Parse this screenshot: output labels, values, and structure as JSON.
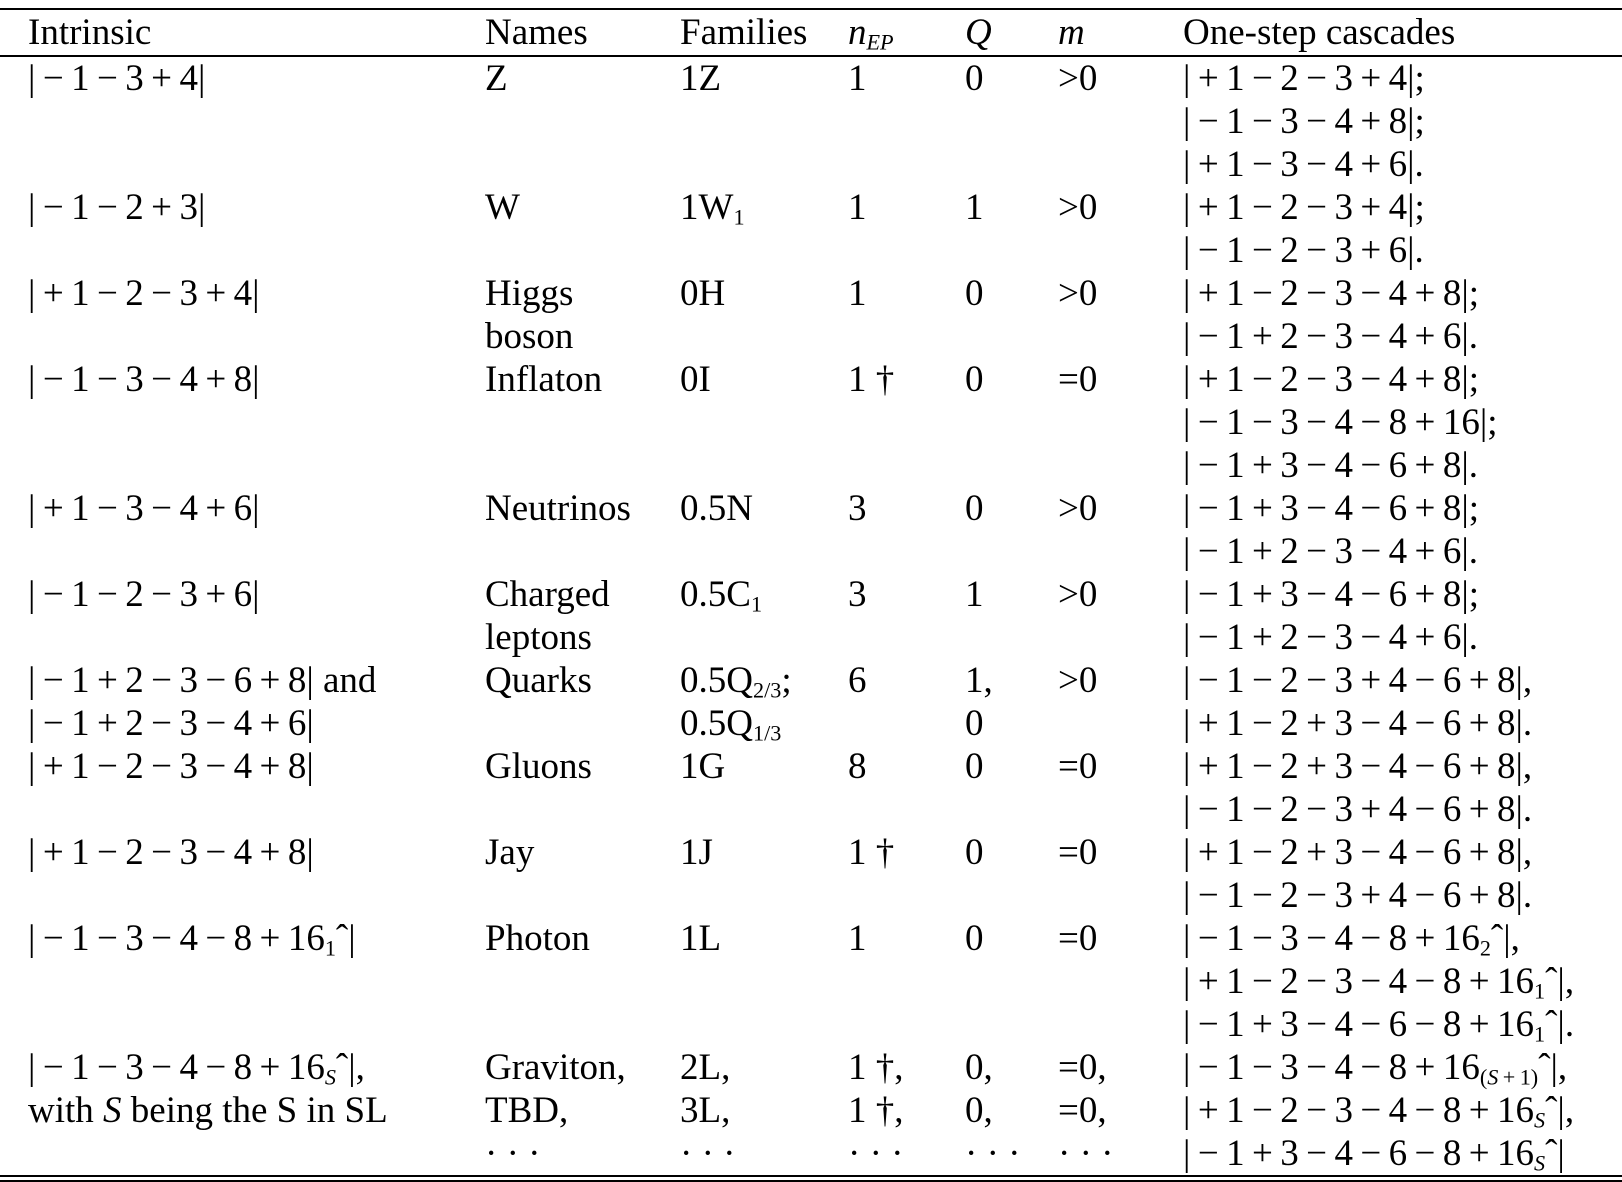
{
  "table": {
    "headers": [
      "Intrinsic",
      "Names",
      "Families",
      "*n*_{*EP*}",
      "*Q*",
      "*m*",
      "One-step cascades"
    ],
    "rows": [
      {
        "intrinsic": [
          "|−1−3+4|"
        ],
        "names": [
          "Z"
        ],
        "families": [
          "1Z"
        ],
        "n_ep": [
          "1"
        ],
        "q": [
          "0"
        ],
        "m": [
          ">0"
        ],
        "cascades": [
          "|+1−2−3+4|;",
          "|−1−3−4+8|;",
          "|+1−3−4+6|."
        ]
      },
      {
        "intrinsic": [
          "|−1−2+3|"
        ],
        "names": [
          "W"
        ],
        "families": [
          "1W_{1}"
        ],
        "n_ep": [
          "1"
        ],
        "q": [
          "1"
        ],
        "m": [
          ">0"
        ],
        "cascades": [
          "|+1−2−3+4|;",
          "|−1−2−3+6|."
        ]
      },
      {
        "intrinsic": [
          "|+1−2−3+4|"
        ],
        "names": [
          "Higgs",
          "boson"
        ],
        "families": [
          "0H"
        ],
        "n_ep": [
          "1"
        ],
        "q": [
          "0"
        ],
        "m": [
          ">0"
        ],
        "cascades": [
          "|+1−2−3−4+8|;",
          "|−1+2−3−4+6|."
        ]
      },
      {
        "intrinsic": [
          "|−1−3−4+8|"
        ],
        "names": [
          "Inflaton"
        ],
        "families": [
          "0I"
        ],
        "n_ep": [
          "1 †"
        ],
        "q": [
          "0"
        ],
        "m": [
          "=0"
        ],
        "cascades": [
          "|+1−2−3−4+8|;",
          "|−1−3−4−8+16|;",
          "|−1+3−4−6+8|."
        ]
      },
      {
        "intrinsic": [
          "|+1−3−4+6|"
        ],
        "names": [
          "Neutrinos"
        ],
        "families": [
          "0.5N"
        ],
        "n_ep": [
          "3"
        ],
        "q": [
          "0"
        ],
        "m": [
          ">0"
        ],
        "cascades": [
          "|−1+3−4−6+8|;",
          "|−1+2−3−4+6|."
        ]
      },
      {
        "intrinsic": [
          "|−1−2−3+6|"
        ],
        "names": [
          "Charged",
          "leptons"
        ],
        "families": [
          "0.5C_{1}"
        ],
        "n_ep": [
          "3"
        ],
        "q": [
          "1"
        ],
        "m": [
          ">0"
        ],
        "cascades": [
          "|−1+3−4−6+8|;",
          "|−1+2−3−4+6|."
        ]
      },
      {
        "intrinsic": [
          "|−1+2−3−6+8| and",
          "|−1+2−3−4+6|"
        ],
        "names": [
          "Quarks"
        ],
        "families": [
          "0.5Q_{2/3};",
          "0.5Q_{1/3}"
        ],
        "n_ep": [
          "6"
        ],
        "q": [
          "1,",
          "0"
        ],
        "m": [
          ">0"
        ],
        "cascades": [
          "|−1−2−3+4−6+8|,",
          "|+1−2+3−4−6+8|."
        ]
      },
      {
        "intrinsic": [
          "|+1−2−3−4+8|"
        ],
        "names": [
          "Gluons"
        ],
        "families": [
          "1G"
        ],
        "n_ep": [
          "8"
        ],
        "q": [
          "0"
        ],
        "m": [
          "=0"
        ],
        "cascades": [
          "|+1−2+3−4−6+8|,",
          "|−1−2−3+4−6+8|."
        ]
      },
      {
        "intrinsic": [
          "|+1−2−3−4+8|"
        ],
        "names": [
          "Jay"
        ],
        "families": [
          "1J"
        ],
        "n_ep": [
          "1 †"
        ],
        "q": [
          "0"
        ],
        "m": [
          "=0"
        ],
        "cascades": [
          "|+1−2+3−4−6+8|,",
          "|−1−2−3+4−6+8|."
        ]
      },
      {
        "intrinsic": [
          "|−1−3−4−8+16_{1}ˆ|"
        ],
        "names": [
          "Photon"
        ],
        "families": [
          "1L"
        ],
        "n_ep": [
          "1"
        ],
        "q": [
          "0"
        ],
        "m": [
          "=0"
        ],
        "cascades": [
          "|−1−3−4−8+16_{2}ˆ|,",
          "|+1−2−3−4−8+16_{1}ˆ|,",
          "|−1+3−4−6−8+16_{1}ˆ|."
        ]
      },
      {
        "intrinsic": [
          "|−1−3−4−8+16_{*S*}ˆ|,",
          "with *S* being the S in SL"
        ],
        "names": [
          "Graviton,",
          "TBD,",
          "· · ·"
        ],
        "families": [
          "2L,",
          "3L,",
          "· · ·"
        ],
        "n_ep": [
          "1 †,",
          "1 †,",
          "· · ·"
        ],
        "q": [
          "0,",
          "0,",
          "· · ·"
        ],
        "m": [
          "=0,",
          "=0,",
          "· · ·"
        ],
        "cascades": [
          "|−1−3−4−8+16_{(*S*+1)}ˆ|,",
          "|+1−2−3−4−8+16_{*S*}ˆ|,",
          "|−1+3−4−6−8+16_{*S*}ˆ|"
        ]
      }
    ]
  },
  "styles": {
    "text_color": "#000000",
    "background_color": "#ffffff",
    "rule_color": "#000000"
  }
}
